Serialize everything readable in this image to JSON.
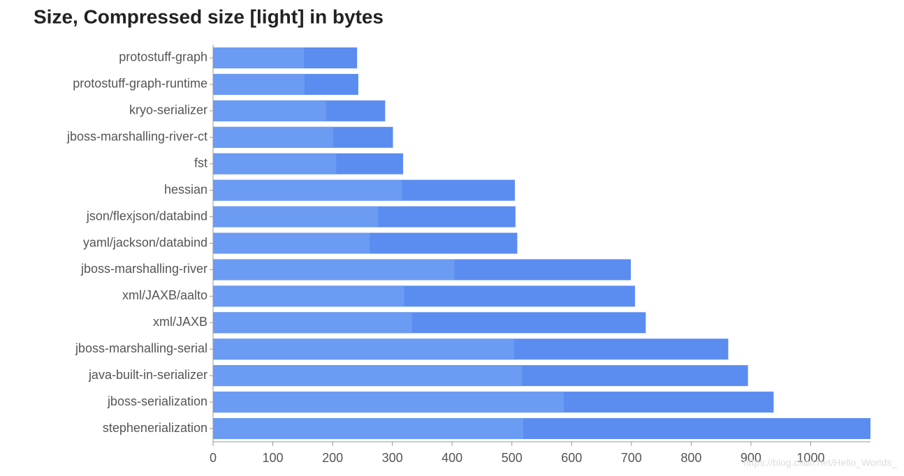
{
  "chart_data": {
    "type": "overlaid-bar",
    "orientation": "horizontal",
    "title": "Size, Compressed size [light] in bytes",
    "watermark": "https://blog.csdn.net/Hello_Worlds_",
    "categories": [
      "protostuff-graph",
      "protostuff-graph-runtime",
      "kryo-serializer",
      "jboss-marshalling-river-ct",
      "fst",
      "hessian",
      "json/flexjson/databind",
      "yaml/jackson/databind",
      "jboss-marshalling-river",
      "xml/JAXB/aalto",
      "xml/JAXB",
      "jboss-marshalling-serial",
      "java-built-in-serializer",
      "jboss-serialization",
      "stephenerialization"
    ],
    "series": [
      {
        "color": "#5b8cf0",
        "values": [
          241,
          243,
          288,
          301,
          318,
          505,
          506,
          509,
          699,
          706,
          724,
          862,
          895,
          938,
          1100
        ]
      },
      {
        "color": "#6b9bf3",
        "values": [
          152,
          153,
          189,
          201,
          206,
          316,
          276,
          262,
          404,
          320,
          333,
          504,
          517,
          587,
          519
        ]
      }
    ],
    "xlim": [
      0,
      1100
    ],
    "xticks": [
      0,
      100,
      200,
      300,
      400,
      500,
      600,
      700,
      800,
      900,
      1000
    ]
  }
}
